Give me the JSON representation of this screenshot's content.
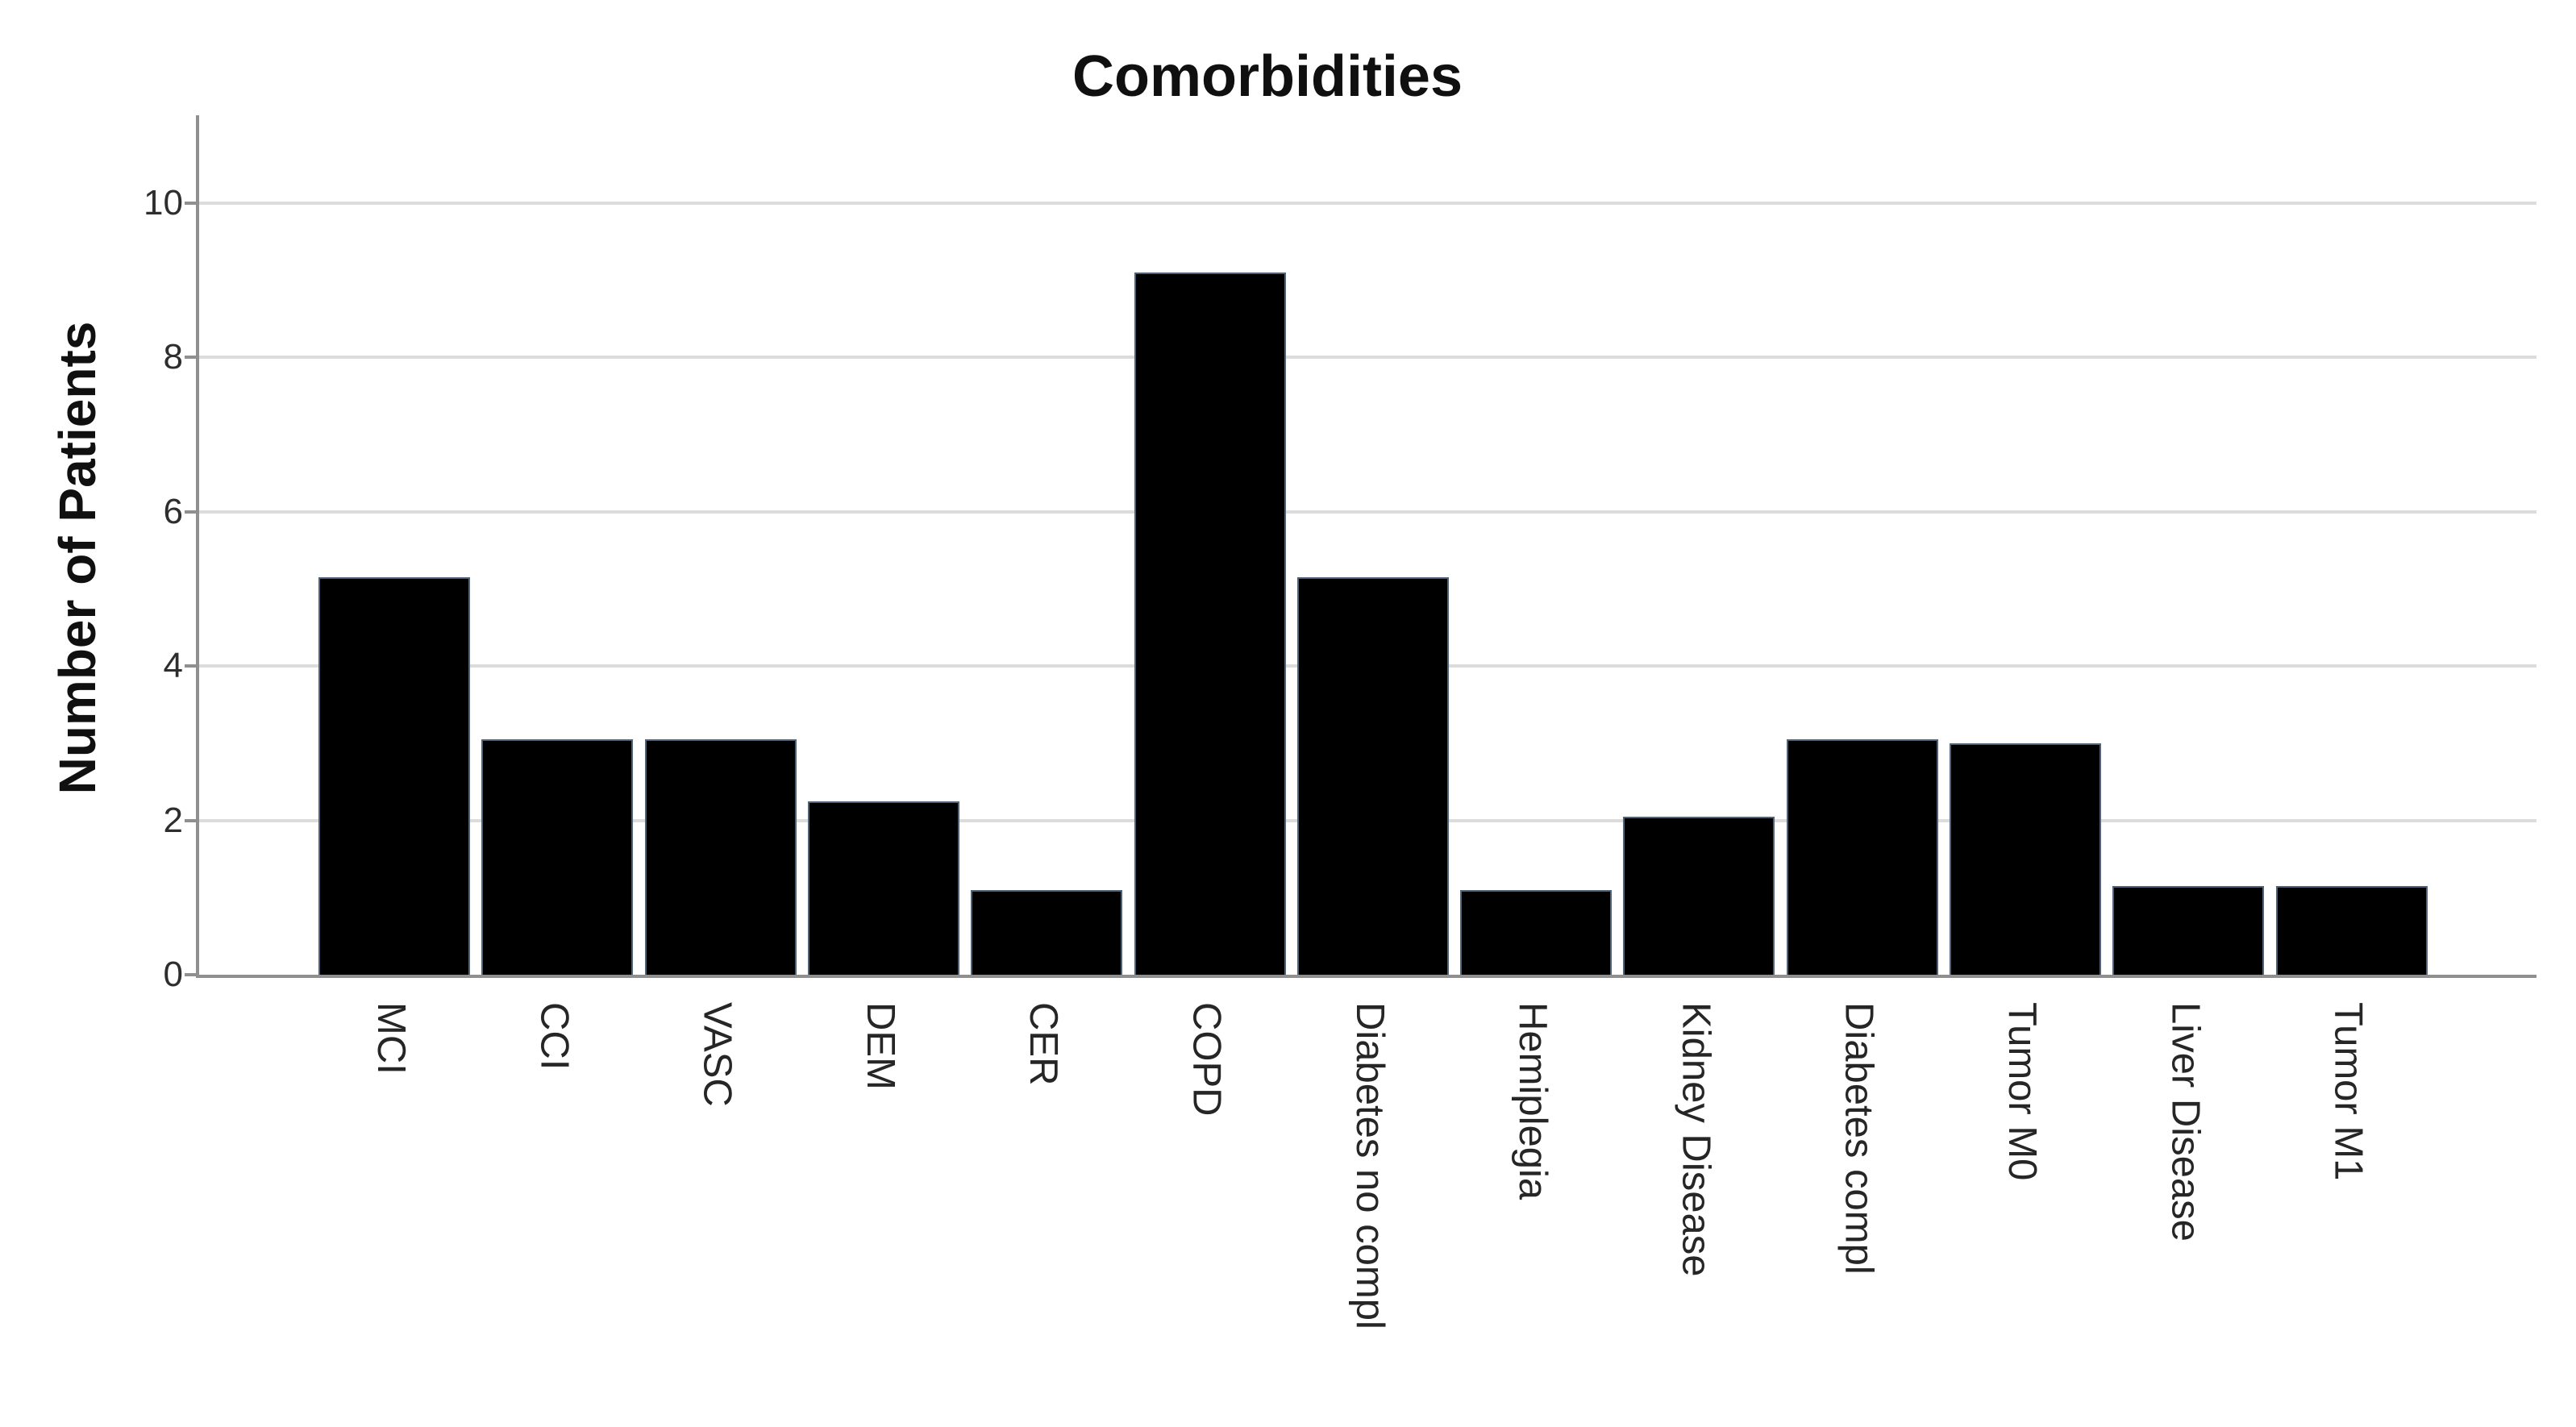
{
  "chart_data": {
    "type": "bar",
    "title": "Comorbidities",
    "xlabel": "",
    "ylabel": "Number of Patients",
    "categories": [
      "MCI",
      "CCI",
      "VASC",
      "DEM",
      "CER",
      "COPD",
      "Diabetes no compl",
      "Hemiplegia",
      "Kidney Disease",
      "Diabetes compl",
      "Tumor M0",
      "Liver Disease",
      "Tumor M1"
    ],
    "values": [
      5.15,
      3.05,
      3.05,
      2.25,
      1.1,
      9.1,
      5.15,
      1.1,
      2.05,
      3.05,
      3.0,
      1.15,
      1.15
    ],
    "yticks": [
      0,
      2,
      4,
      6,
      8,
      10
    ],
    "ylim": [
      0,
      11.13
    ],
    "grid": "horizontal",
    "legend": "none",
    "bar_fill_color": "#000000",
    "bar_border_color": "#4f6478",
    "axis_color": "#8f8f8f",
    "gridline_color": "#dcdcdc",
    "title_color": "#101010",
    "tick_label_color": "#2e2e2e",
    "category_label_color": "#262626"
  }
}
